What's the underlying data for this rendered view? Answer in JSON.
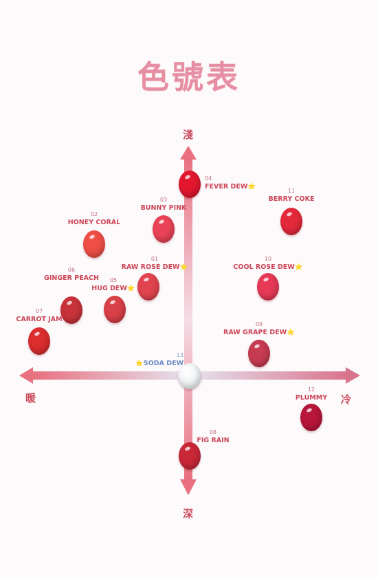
{
  "title": "色號表",
  "axes": {
    "top": "淺",
    "bottom": "深",
    "left": "暖",
    "right": "冷"
  },
  "shades": [
    {
      "id": "01",
      "name": "RAW ROSE DEW",
      "star": true,
      "color": "#e2444f"
    },
    {
      "id": "02",
      "name": "HONEY CORAL",
      "star": false,
      "color": "#ef4f45"
    },
    {
      "id": "03",
      "name": "BUNNY PINK",
      "star": false,
      "color": "#ea4357"
    },
    {
      "id": "04",
      "name": "FEVER DEW",
      "star": true,
      "color": "#e2172f"
    },
    {
      "id": "05",
      "name": "HUG DEW",
      "star": true,
      "color": "#d94048"
    },
    {
      "id": "06",
      "name": "GINGER PEACH",
      "star": false,
      "color": "#c8323b"
    },
    {
      "id": "07",
      "name": "CARROT JAM",
      "star": false,
      "color": "#dc2d2f"
    },
    {
      "id": "08",
      "name": "FIG RAIN",
      "star": false,
      "color": "#c92837"
    },
    {
      "id": "09",
      "name": "RAW GRAPE DEW",
      "star": true,
      "color": "#c73c52"
    },
    {
      "id": "10",
      "name": "COOL ROSE DEW",
      "star": true,
      "color": "#e63a57"
    },
    {
      "id": "11",
      "name": "BERRY COKE",
      "star": false,
      "color": "#e4293b"
    },
    {
      "id": "12",
      "name": "PLUMMY",
      "star": false,
      "color": "#b8163a"
    },
    {
      "id": "13",
      "name": "SODA DEW",
      "star": true,
      "color": "#eef0f2"
    }
  ],
  "colors": {
    "accent": "#cc4658",
    "title": "#e68fa3",
    "soda": "#6d8cc6"
  }
}
